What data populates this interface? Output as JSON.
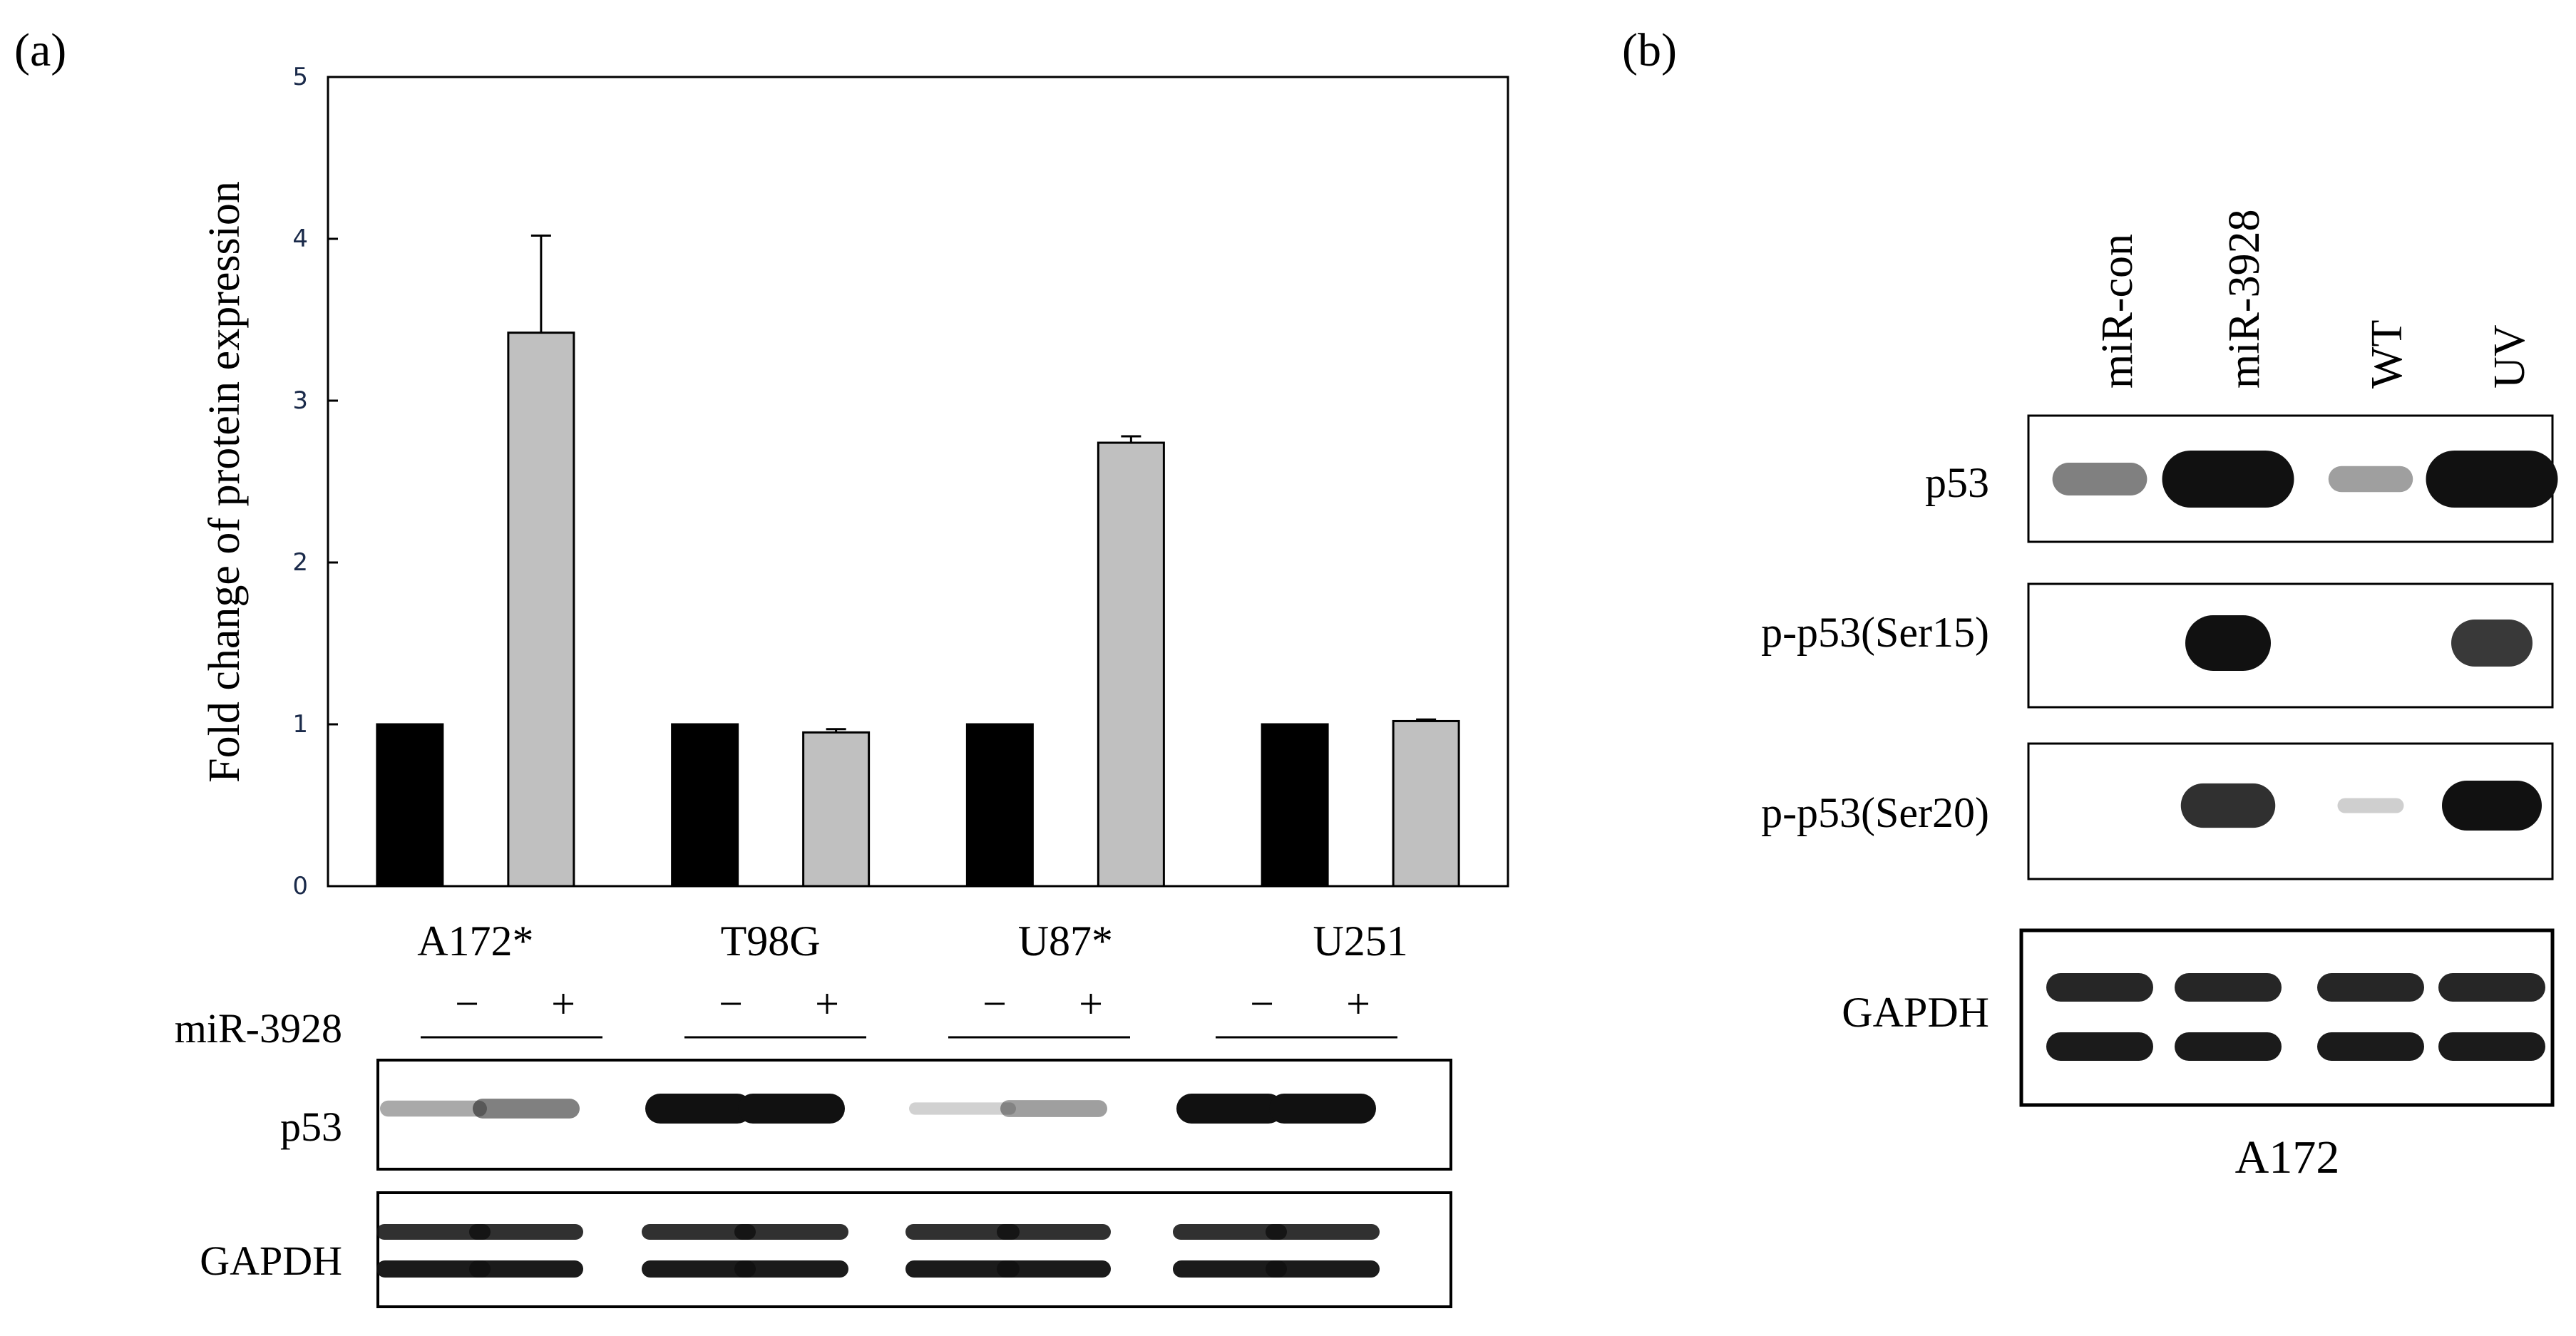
{
  "panel_a": {
    "label": "(a)",
    "condition_label": "miR-3928",
    "minus_sign": "−",
    "plus_sign": "+",
    "blot_labels": [
      "p53",
      "GAPDH"
    ]
  },
  "panel_b": {
    "label": "(b)",
    "lanes": [
      "miR-con",
      "miR-3928",
      "WT",
      "UV"
    ],
    "blot_labels": [
      "p53",
      "p-p53(Ser15)",
      "p-p53(Ser20)",
      "GAPDH"
    ],
    "cell_line": "A172"
  },
  "colors": {
    "control_bar": "#000000",
    "treated_bar": "#c0c0c0",
    "band": "#111111"
  },
  "chart_data": {
    "type": "bar",
    "categories": [
      "A172*",
      "T98G",
      "U87*",
      "U251"
    ],
    "series": [
      {
        "values": [
          1.0,
          1.0,
          1.0,
          1.0
        ],
        "errors": [
          0,
          0,
          0,
          0
        ]
      },
      {
        "values": [
          3.42,
          0.95,
          2.74,
          1.02
        ],
        "errors": [
          0.6,
          0.02,
          0.04,
          0.01
        ]
      }
    ],
    "ylabel": "Fold change of protein expression",
    "ylim": [
      0,
      5
    ],
    "yticks": [
      0,
      1,
      2,
      3,
      4,
      5
    ],
    "grid": false
  },
  "blots": {
    "a_p53": [
      0.25,
      0.45,
      1.0,
      1.0,
      0.05,
      0.3,
      1.0,
      1.0
    ],
    "b_p53": [
      0.45,
      1.0,
      0.3,
      1.0
    ],
    "b_ser15": [
      0.0,
      1.0,
      0.0,
      0.8
    ],
    "b_ser20": [
      0.0,
      0.85,
      0.06,
      1.0
    ]
  }
}
